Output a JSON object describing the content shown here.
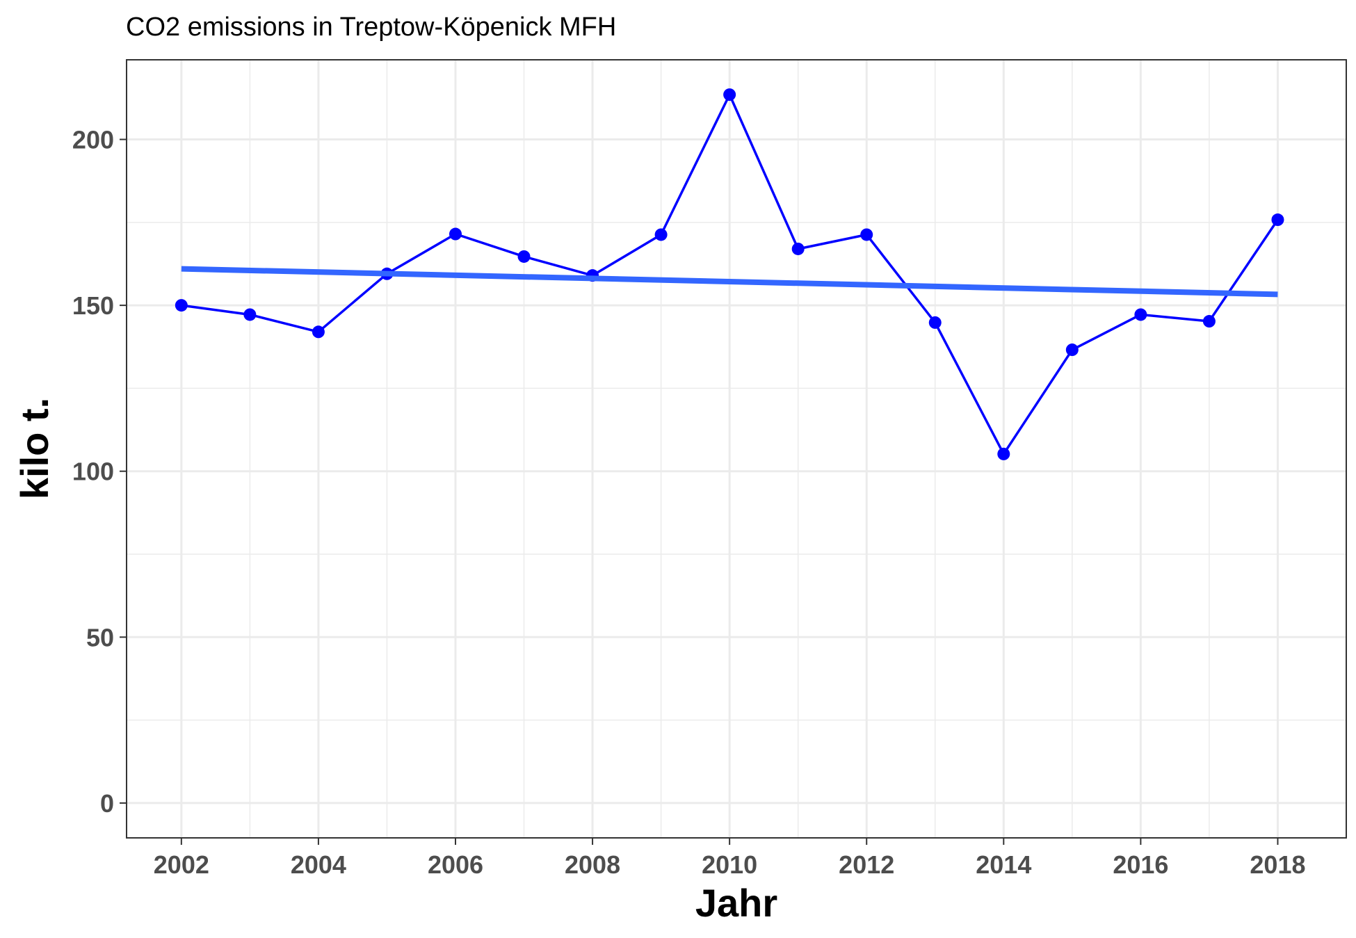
{
  "chart_data": {
    "type": "line",
    "title": "CO2 emissions in Treptow-Köpenick MFH",
    "xlabel": "Jahr",
    "ylabel": "kilo t.",
    "xlim": [
      2001.2,
      2019.0
    ],
    "ylim": [
      -10.5,
      224
    ],
    "x_ticks": [
      2002,
      2004,
      2006,
      2008,
      2010,
      2012,
      2014,
      2016,
      2018
    ],
    "y_ticks": [
      0,
      50,
      100,
      150,
      200
    ],
    "grid": true,
    "series": [
      {
        "kind": "line+points",
        "color": "#0000ff",
        "x": [
          2002,
          2003,
          2004,
          2005,
          2006,
          2007,
          2008,
          2009,
          2010,
          2011,
          2012,
          2013,
          2014,
          2015,
          2016,
          2017,
          2018
        ],
        "y": [
          150.0,
          147.2,
          142.0,
          159.5,
          171.5,
          164.7,
          159.0,
          171.3,
          213.5,
          167.0,
          171.3,
          144.8,
          105.2,
          136.6,
          147.2,
          145.2,
          175.8
        ]
      },
      {
        "kind": "trend",
        "color": "#3366ff",
        "x": [
          2002,
          2018
        ],
        "y": [
          161.0,
          153.3
        ]
      }
    ]
  }
}
